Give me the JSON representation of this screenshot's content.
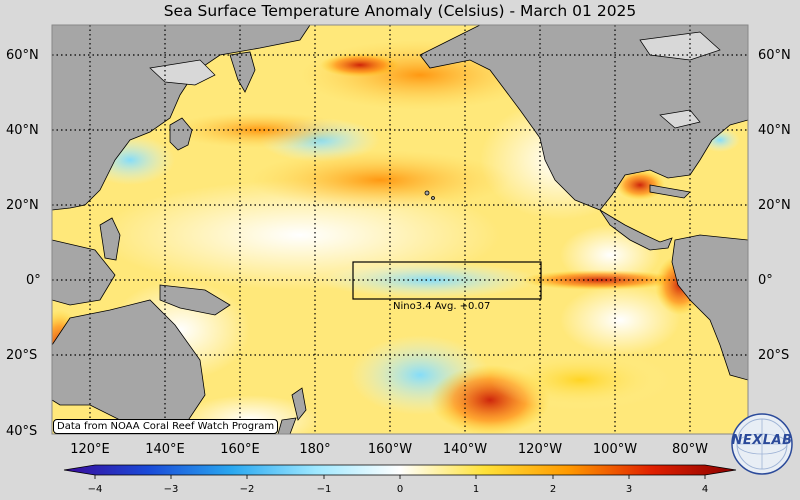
{
  "title": "Sea Surface Temperature Anomaly (Celsius) - March 01 2025",
  "lat_labels": [
    "60°N",
    "40°N",
    "20°N",
    "0°",
    "20°S",
    "40°S"
  ],
  "lon_labels": [
    "120°E",
    "140°E",
    "160°E",
    "180°",
    "160°W",
    "140°W",
    "120°W",
    "100°W",
    "80°W"
  ],
  "nino_box_label": "Nino3.4 Avg. +0.07",
  "credit": "Data from NOAA Coral Reef Watch Program",
  "logo_text": "NEXLAB",
  "colorbar_ticks": [
    "−4",
    "−3",
    "−2",
    "−1",
    "0",
    "1",
    "2",
    "3",
    "4"
  ],
  "colors": {
    "land": "#a6a6a6",
    "ice": "#d8d8d8",
    "frame_bg": "#d9d9d9",
    "scale": [
      "#3a0a9a",
      "#1a4ad8",
      "#2aa8f0",
      "#9fe8ff",
      "#ffffff",
      "#ffe23a",
      "#ff9a00",
      "#e02000",
      "#8a0000"
    ]
  }
}
